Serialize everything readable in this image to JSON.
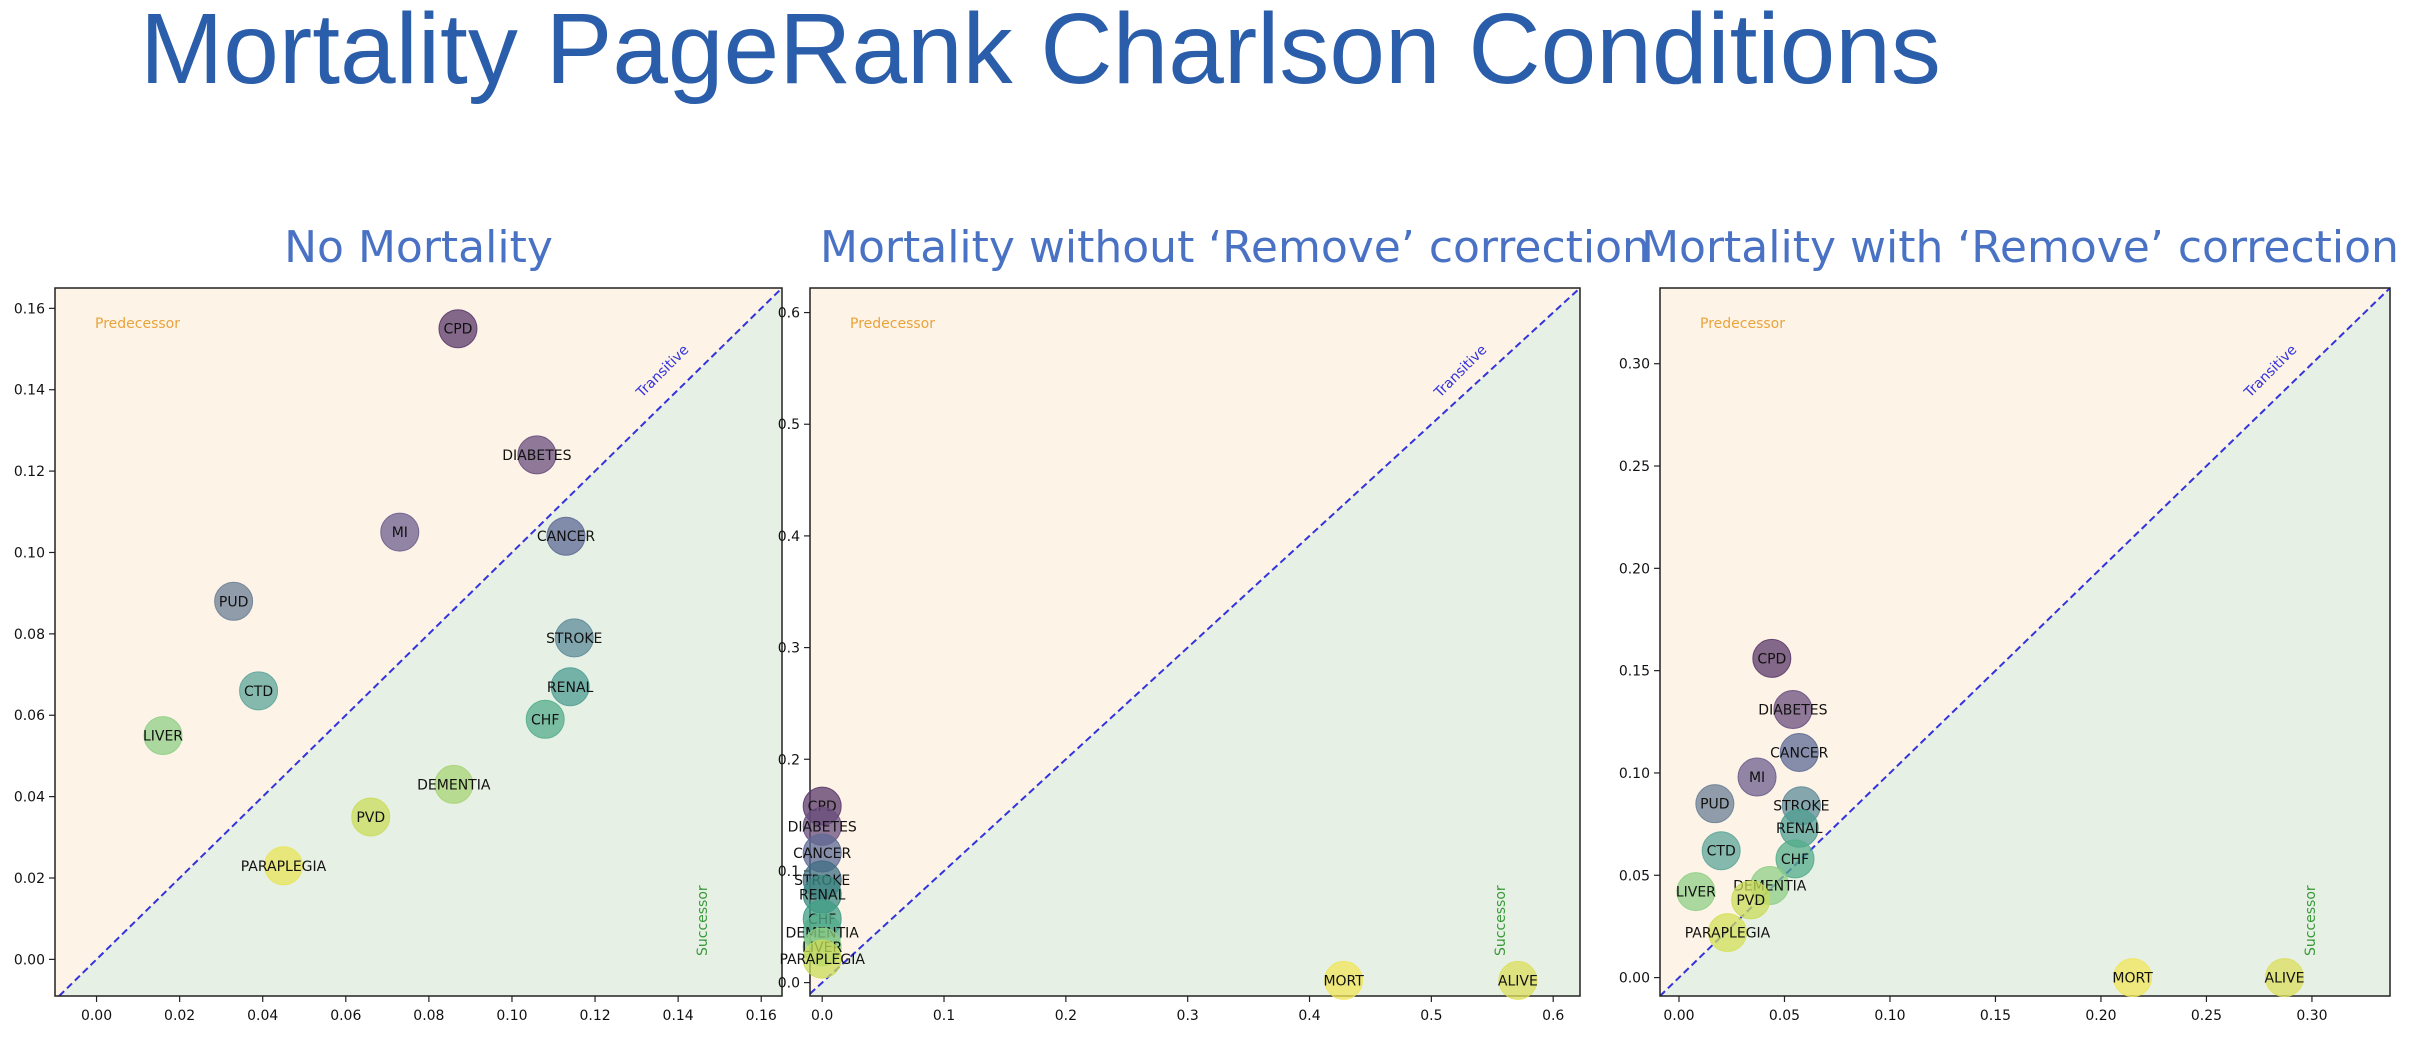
{
  "title": "Mortality PageRank Charlson Conditions",
  "colors": {
    "predecessor_fill": "#fdf3e7",
    "successor_fill": "#e7f0e5",
    "diagonal": "#3333dd",
    "predecessor_label": "#e8a33a",
    "successor_label": "#3a9a3a",
    "transitive_label": "#3333dd",
    "title": "#2a5daa",
    "panel_title": "#4a72c4"
  },
  "chart_data": [
    {
      "type": "scatter",
      "title": "No Mortality",
      "xlim": [
        -0.01,
        0.165
      ],
      "ylim": [
        -0.009,
        0.165
      ],
      "xticks": [
        "0.00",
        "0.02",
        "0.04",
        "0.06",
        "0.08",
        "0.10",
        "0.12",
        "0.14",
        "0.16"
      ],
      "yticks": [
        "0.00",
        "0.02",
        "0.04",
        "0.06",
        "0.08",
        "0.10",
        "0.12",
        "0.14",
        "0.16"
      ],
      "region_labels": {
        "predecessor": "Predecessor",
        "successor": "Successor",
        "transitive": "Transitive"
      },
      "points": [
        {
          "label": "CPD",
          "x": 0.087,
          "y": 0.155,
          "color": "#5b3a6a"
        },
        {
          "label": "DIABETES",
          "x": 0.106,
          "y": 0.124,
          "color": "#6a4f7d"
        },
        {
          "label": "MI",
          "x": 0.073,
          "y": 0.105,
          "color": "#6c5f8d"
        },
        {
          "label": "CANCER",
          "x": 0.113,
          "y": 0.104,
          "color": "#5d6b95"
        },
        {
          "label": "PUD",
          "x": 0.033,
          "y": 0.088,
          "color": "#6b7f96"
        },
        {
          "label": "STROKE",
          "x": 0.115,
          "y": 0.079,
          "color": "#5e8c99"
        },
        {
          "label": "CTD",
          "x": 0.039,
          "y": 0.066,
          "color": "#5ea59a"
        },
        {
          "label": "RENAL",
          "x": 0.114,
          "y": 0.067,
          "color": "#4e9e92"
        },
        {
          "label": "CHF",
          "x": 0.108,
          "y": 0.059,
          "color": "#54ae8b"
        },
        {
          "label": "LIVER",
          "x": 0.016,
          "y": 0.055,
          "color": "#8fcf86"
        },
        {
          "label": "DEMENTIA",
          "x": 0.086,
          "y": 0.043,
          "color": "#a7d474"
        },
        {
          "label": "PVD",
          "x": 0.066,
          "y": 0.035,
          "color": "#c9dc5a"
        },
        {
          "label": "PARAPLEGIA",
          "x": 0.045,
          "y": 0.023,
          "color": "#e7e458"
        }
      ]
    },
    {
      "type": "scatter",
      "title": "Mortality without ‘Remove’ correction",
      "xlim": [
        -0.01,
        0.622
      ],
      "ylim": [
        -0.012,
        0.622
      ],
      "xticks": [
        "0.0",
        "0.1",
        "0.2",
        "0.3",
        "0.4",
        "0.5",
        "0.6"
      ],
      "yticks": [
        "0.0",
        "0.1",
        "0.2",
        "0.3",
        "0.4",
        "0.5",
        "0.6"
      ],
      "region_labels": {
        "predecessor": "Predecessor",
        "successor": "Successor",
        "transitive": "Transitive"
      },
      "points": [
        {
          "label": "CPD",
          "x": 0.0,
          "y": 0.158,
          "color": "#5b3a6a"
        },
        {
          "label": "DIABETES",
          "x": 0.0,
          "y": 0.14,
          "color": "#6a4f7d"
        },
        {
          "label": "CANCER",
          "x": 0.0,
          "y": 0.116,
          "color": "#5d6b95"
        },
        {
          "label": "STROKE",
          "x": 0.0,
          "y": 0.092,
          "color": "#3e6d83"
        },
        {
          "label": "RENAL",
          "x": 0.0,
          "y": 0.079,
          "color": "#3c8a83"
        },
        {
          "label": "CHF",
          "x": 0.0,
          "y": 0.057,
          "color": "#3f9f86"
        },
        {
          "label": "DEMENTIA",
          "x": 0.0,
          "y": 0.045,
          "color": "#54ae8b"
        },
        {
          "label": "LIVER",
          "x": 0.0,
          "y": 0.032,
          "color": "#8fcf86"
        },
        {
          "label": "PARAPLEGIA",
          "x": 0.0,
          "y": 0.021,
          "color": "#c9dc5a"
        },
        {
          "label": "MORT",
          "x": 0.428,
          "y": 0.002,
          "color": "#f0e65a"
        },
        {
          "label": "ALIVE",
          "x": 0.571,
          "y": 0.002,
          "color": "#dcdf5c"
        }
      ]
    },
    {
      "type": "scatter",
      "title": "Mortality with ‘Remove’ correction",
      "xlim": [
        -0.009,
        0.337
      ],
      "ylim": [
        -0.009,
        0.337
      ],
      "xticks": [
        "0.00",
        "0.05",
        "0.10",
        "0.15",
        "0.20",
        "0.25",
        "0.30"
      ],
      "yticks": [
        "0.00",
        "0.05",
        "0.10",
        "0.15",
        "0.20",
        "0.25",
        "0.30"
      ],
      "region_labels": {
        "predecessor": "Predecessor",
        "successor": "Successor",
        "transitive": "Transitive"
      },
      "points": [
        {
          "label": "CPD",
          "x": 0.044,
          "y": 0.156,
          "color": "#5b3a6a"
        },
        {
          "label": "DIABETES",
          "x": 0.054,
          "y": 0.131,
          "color": "#6a4f7d"
        },
        {
          "label": "CANCER",
          "x": 0.057,
          "y": 0.11,
          "color": "#5d6b95"
        },
        {
          "label": "MI",
          "x": 0.037,
          "y": 0.098,
          "color": "#6c5f8d"
        },
        {
          "label": "PUD",
          "x": 0.017,
          "y": 0.085,
          "color": "#6b7f96"
        },
        {
          "label": "STROKE",
          "x": 0.058,
          "y": 0.084,
          "color": "#5e8c99"
        },
        {
          "label": "RENAL",
          "x": 0.057,
          "y": 0.073,
          "color": "#4e9e92"
        },
        {
          "label": "CTD",
          "x": 0.02,
          "y": 0.062,
          "color": "#5ea59a"
        },
        {
          "label": "CHF",
          "x": 0.055,
          "y": 0.058,
          "color": "#54ae8b"
        },
        {
          "label": "DEMENTIA",
          "x": 0.043,
          "y": 0.045,
          "color": "#8fcf86"
        },
        {
          "label": "LIVER",
          "x": 0.008,
          "y": 0.042,
          "color": "#8fcf86"
        },
        {
          "label": "PVD",
          "x": 0.034,
          "y": 0.038,
          "color": "#c9dc5a"
        },
        {
          "label": "PARAPLEGIA",
          "x": 0.023,
          "y": 0.022,
          "color": "#d4e05a"
        },
        {
          "label": "MORT",
          "x": 0.215,
          "y": 0.0,
          "color": "#f0e65a"
        },
        {
          "label": "ALIVE",
          "x": 0.287,
          "y": 0.0,
          "color": "#dcdf5c"
        }
      ]
    }
  ]
}
